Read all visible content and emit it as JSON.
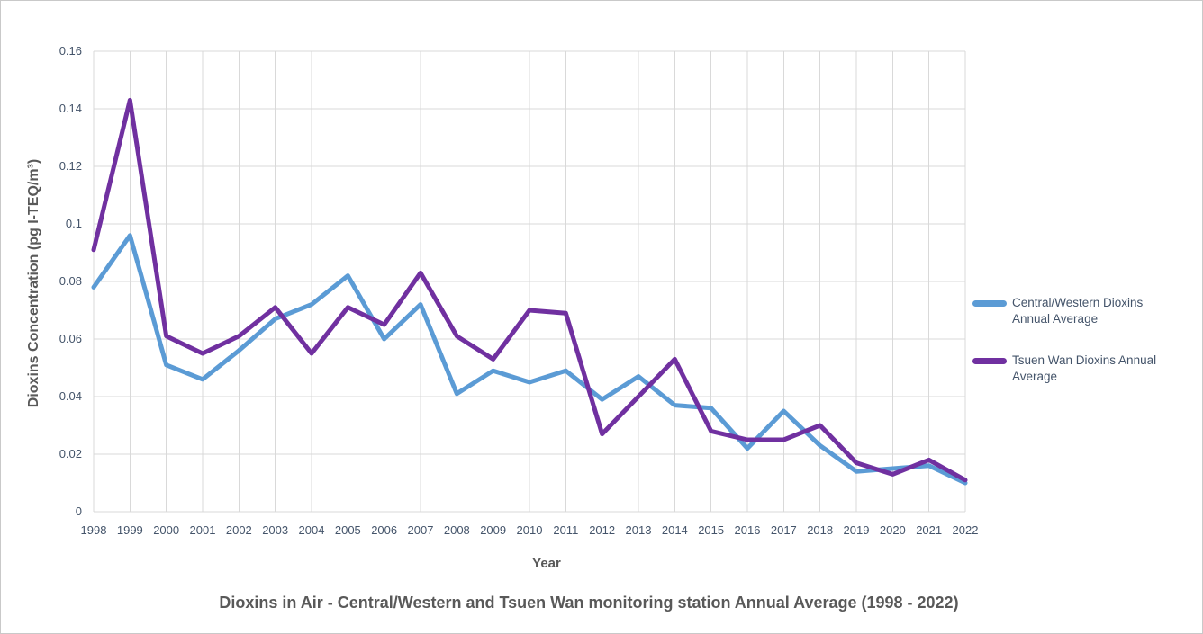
{
  "chart_data": {
    "type": "line",
    "title": "Dioxins in Air - Central/Western and Tsuen Wan monitoring station Annual Average (1998 - 2022)",
    "xlabel": "Year",
    "ylabel": "Dioxins Concentration (pg I-TEQ/m³)",
    "x": [
      1998,
      1999,
      2000,
      2001,
      2002,
      2003,
      2004,
      2005,
      2006,
      2007,
      2008,
      2009,
      2010,
      2011,
      2012,
      2013,
      2014,
      2015,
      2016,
      2017,
      2018,
      2019,
      2020,
      2021,
      2022
    ],
    "series": [
      {
        "name": "Central/Western Dioxins Annual Average",
        "color": "#5B9BD5",
        "values": [
          0.078,
          0.096,
          0.051,
          0.046,
          0.056,
          0.067,
          0.072,
          0.082,
          0.06,
          0.072,
          0.041,
          0.049,
          0.045,
          0.049,
          0.039,
          0.047,
          0.037,
          0.036,
          0.022,
          0.035,
          0.023,
          0.014,
          0.015,
          0.016,
          0.01
        ]
      },
      {
        "name": "Tsuen Wan Dioxins Annual Average",
        "color": "#7030A0",
        "values": [
          0.091,
          0.143,
          0.061,
          0.055,
          0.061,
          0.071,
          0.055,
          0.071,
          0.065,
          0.083,
          0.061,
          0.053,
          0.07,
          0.069,
          0.027,
          0.04,
          0.053,
          0.028,
          0.025,
          0.025,
          0.03,
          0.017,
          0.013,
          0.018,
          0.011
        ]
      }
    ],
    "ylim": [
      0,
      0.16
    ],
    "y_tick_labels": [
      "0",
      "0.02",
      "0.04",
      "0.06",
      "0.08",
      "0.1",
      "0.12",
      "0.14",
      "0.16"
    ],
    "grid": true,
    "gridline_color": "#D9D9D9",
    "legend_position": "right"
  }
}
